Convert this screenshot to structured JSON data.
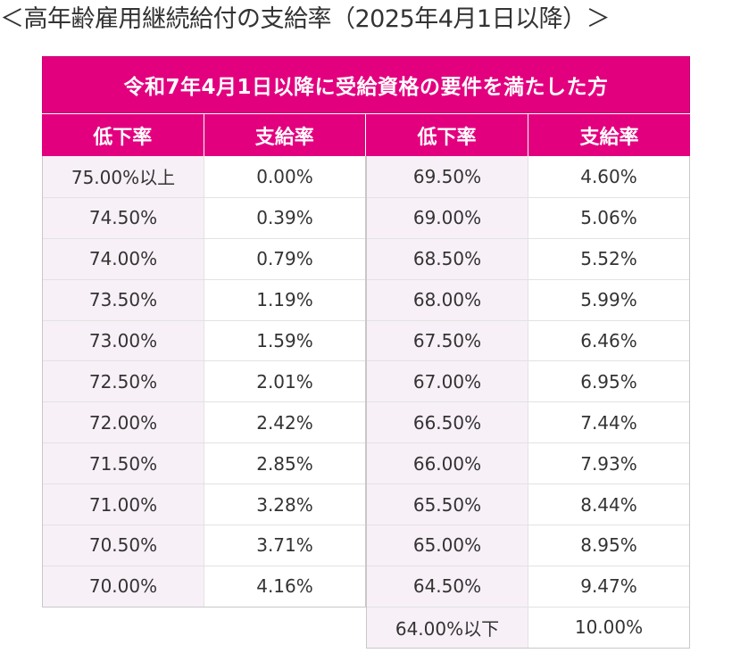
{
  "title": "＜高年齢雇用継続給付の支給率（2025年4月1日以降）＞",
  "table": {
    "caption": "令和7年4月1日以降に受給資格の要件を満たした方",
    "headers": {
      "left": [
        "低下率",
        "支給率"
      ],
      "right": [
        "低下率",
        "支給率"
      ]
    },
    "left_rows": [
      {
        "rate": "75.00%以上",
        "pay": "0.00%"
      },
      {
        "rate": "74.50%",
        "pay": "0.39%"
      },
      {
        "rate": "74.00%",
        "pay": "0.79%"
      },
      {
        "rate": "73.50%",
        "pay": "1.19%"
      },
      {
        "rate": "73.00%",
        "pay": "1.59%"
      },
      {
        "rate": "72.50%",
        "pay": "2.01%"
      },
      {
        "rate": "72.00%",
        "pay": "2.42%"
      },
      {
        "rate": "71.50%",
        "pay": "2.85%"
      },
      {
        "rate": "71.00%",
        "pay": "3.28%"
      },
      {
        "rate": "70.50%",
        "pay": "3.71%"
      },
      {
        "rate": "70.00%",
        "pay": "4.16%"
      }
    ],
    "right_rows": [
      {
        "rate": "69.50%",
        "pay": "4.60%"
      },
      {
        "rate": "69.00%",
        "pay": "5.06%"
      },
      {
        "rate": "68.50%",
        "pay": "5.52%"
      },
      {
        "rate": "68.00%",
        "pay": "5.99%"
      },
      {
        "rate": "67.50%",
        "pay": "6.46%"
      },
      {
        "rate": "67.00%",
        "pay": "6.95%"
      },
      {
        "rate": "66.50%",
        "pay": "7.44%"
      },
      {
        "rate": "66.00%",
        "pay": "7.93%"
      },
      {
        "rate": "65.50%",
        "pay": "8.44%"
      },
      {
        "rate": "65.00%",
        "pay": "8.95%"
      },
      {
        "rate": "64.50%",
        "pay": "9.47%"
      },
      {
        "rate": "64.00%以下",
        "pay": "10.00%"
      }
    ]
  }
}
